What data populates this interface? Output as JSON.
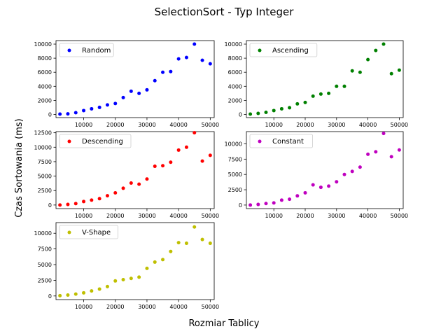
{
  "figure": {
    "title": "SelectionSort - Typ Integer",
    "xlabel": "Rozmiar Tablicy",
    "ylabel": "Czas Sortowania (ms)"
  },
  "chart_data": [
    {
      "type": "scatter",
      "legend": "top-left",
      "series": [
        {
          "name": "Random",
          "color": "#0000ff",
          "x": [
            2500,
            5000,
            7500,
            10000,
            12500,
            15000,
            17500,
            20000,
            22500,
            25000,
            27500,
            30000,
            32500,
            35000,
            37500,
            40000,
            42500,
            45000,
            47500,
            50000
          ],
          "y": [
            50,
            80,
            250,
            550,
            800,
            1000,
            1350,
            1550,
            2400,
            3300,
            3000,
            3500,
            4800,
            6000,
            6100,
            7900,
            8100,
            10000,
            7700,
            7200
          ]
        }
      ],
      "xticks": [
        10000,
        20000,
        30000,
        40000,
        50000
      ],
      "yticks": [
        0,
        2000,
        4000,
        6000,
        8000,
        10000
      ],
      "xlim": [
        1250,
        51250
      ],
      "ylim": [
        -450,
        10500
      ]
    },
    {
      "type": "scatter",
      "legend": "top-left",
      "series": [
        {
          "name": "Ascending",
          "color": "#008000",
          "x": [
            2500,
            5000,
            7500,
            10000,
            12500,
            15000,
            17500,
            20000,
            22500,
            25000,
            27500,
            30000,
            32500,
            35000,
            37500,
            40000,
            42500,
            45000,
            47500,
            50000
          ],
          "y": [
            50,
            150,
            300,
            550,
            800,
            950,
            1500,
            1700,
            2600,
            2900,
            3000,
            4000,
            4000,
            6200,
            6000,
            7800,
            9100,
            10000,
            5800,
            6300
          ]
        }
      ],
      "xticks": [
        10000,
        20000,
        30000,
        40000,
        50000
      ],
      "yticks": [
        0,
        2000,
        4000,
        6000,
        8000,
        10000
      ],
      "xlim": [
        1250,
        51250
      ],
      "ylim": [
        -450,
        10500
      ]
    },
    {
      "type": "scatter",
      "legend": "top-left",
      "series": [
        {
          "name": "Descending",
          "color": "#ff0000",
          "x": [
            2500,
            5000,
            7500,
            10000,
            12500,
            15000,
            17500,
            20000,
            22500,
            25000,
            27500,
            30000,
            32500,
            35000,
            37500,
            40000,
            42500,
            45000,
            47500,
            50000
          ],
          "y": [
            0,
            100,
            250,
            600,
            850,
            1100,
            1600,
            2100,
            2900,
            3800,
            3600,
            4500,
            6700,
            6800,
            7400,
            9500,
            10000,
            12500,
            7600,
            8600
          ]
        }
      ],
      "xticks": [
        10000,
        20000,
        30000,
        40000,
        50000
      ],
      "yticks": [
        0,
        2500,
        5000,
        7500,
        10000,
        12500
      ],
      "xlim": [
        1250,
        51250
      ],
      "ylim": [
        -620,
        12700
      ]
    },
    {
      "type": "scatter",
      "legend": "top-left",
      "series": [
        {
          "name": "Constant",
          "color": "#bf00bf",
          "x": [
            2500,
            5000,
            7500,
            10000,
            12500,
            15000,
            17500,
            20000,
            22500,
            25000,
            27500,
            30000,
            32500,
            35000,
            37500,
            40000,
            42500,
            45000,
            47500,
            50000
          ],
          "y": [
            0,
            100,
            250,
            350,
            800,
            950,
            1500,
            2000,
            3300,
            2900,
            3100,
            3800,
            5000,
            5500,
            6200,
            8300,
            8700,
            11700,
            7900,
            9000
          ]
        }
      ],
      "xticks": [
        10000,
        20000,
        30000,
        40000,
        50000
      ],
      "yticks": [
        0,
        2500,
        5000,
        7500,
        10000
      ],
      "xlim": [
        1250,
        51250
      ],
      "ylim": [
        -580,
        12000
      ]
    },
    {
      "type": "scatter",
      "legend": "top-left",
      "series": [
        {
          "name": "V-Shape",
          "color": "#bfbf00",
          "x": [
            2500,
            5000,
            7500,
            10000,
            12500,
            15000,
            17500,
            20000,
            22500,
            25000,
            27500,
            30000,
            32500,
            35000,
            37500,
            40000,
            42500,
            45000,
            47500,
            50000
          ],
          "y": [
            50,
            150,
            300,
            500,
            800,
            1100,
            1500,
            2400,
            2600,
            2800,
            3000,
            4400,
            5400,
            5800,
            7100,
            8500,
            8400,
            11000,
            9000,
            8400
          ]
        }
      ],
      "xticks": [
        10000,
        20000,
        30000,
        40000,
        50000
      ],
      "yticks": [
        0,
        2500,
        5000,
        7500,
        10000
      ],
      "xlim": [
        1250,
        51250
      ],
      "ylim": [
        -580,
        11700
      ]
    }
  ]
}
